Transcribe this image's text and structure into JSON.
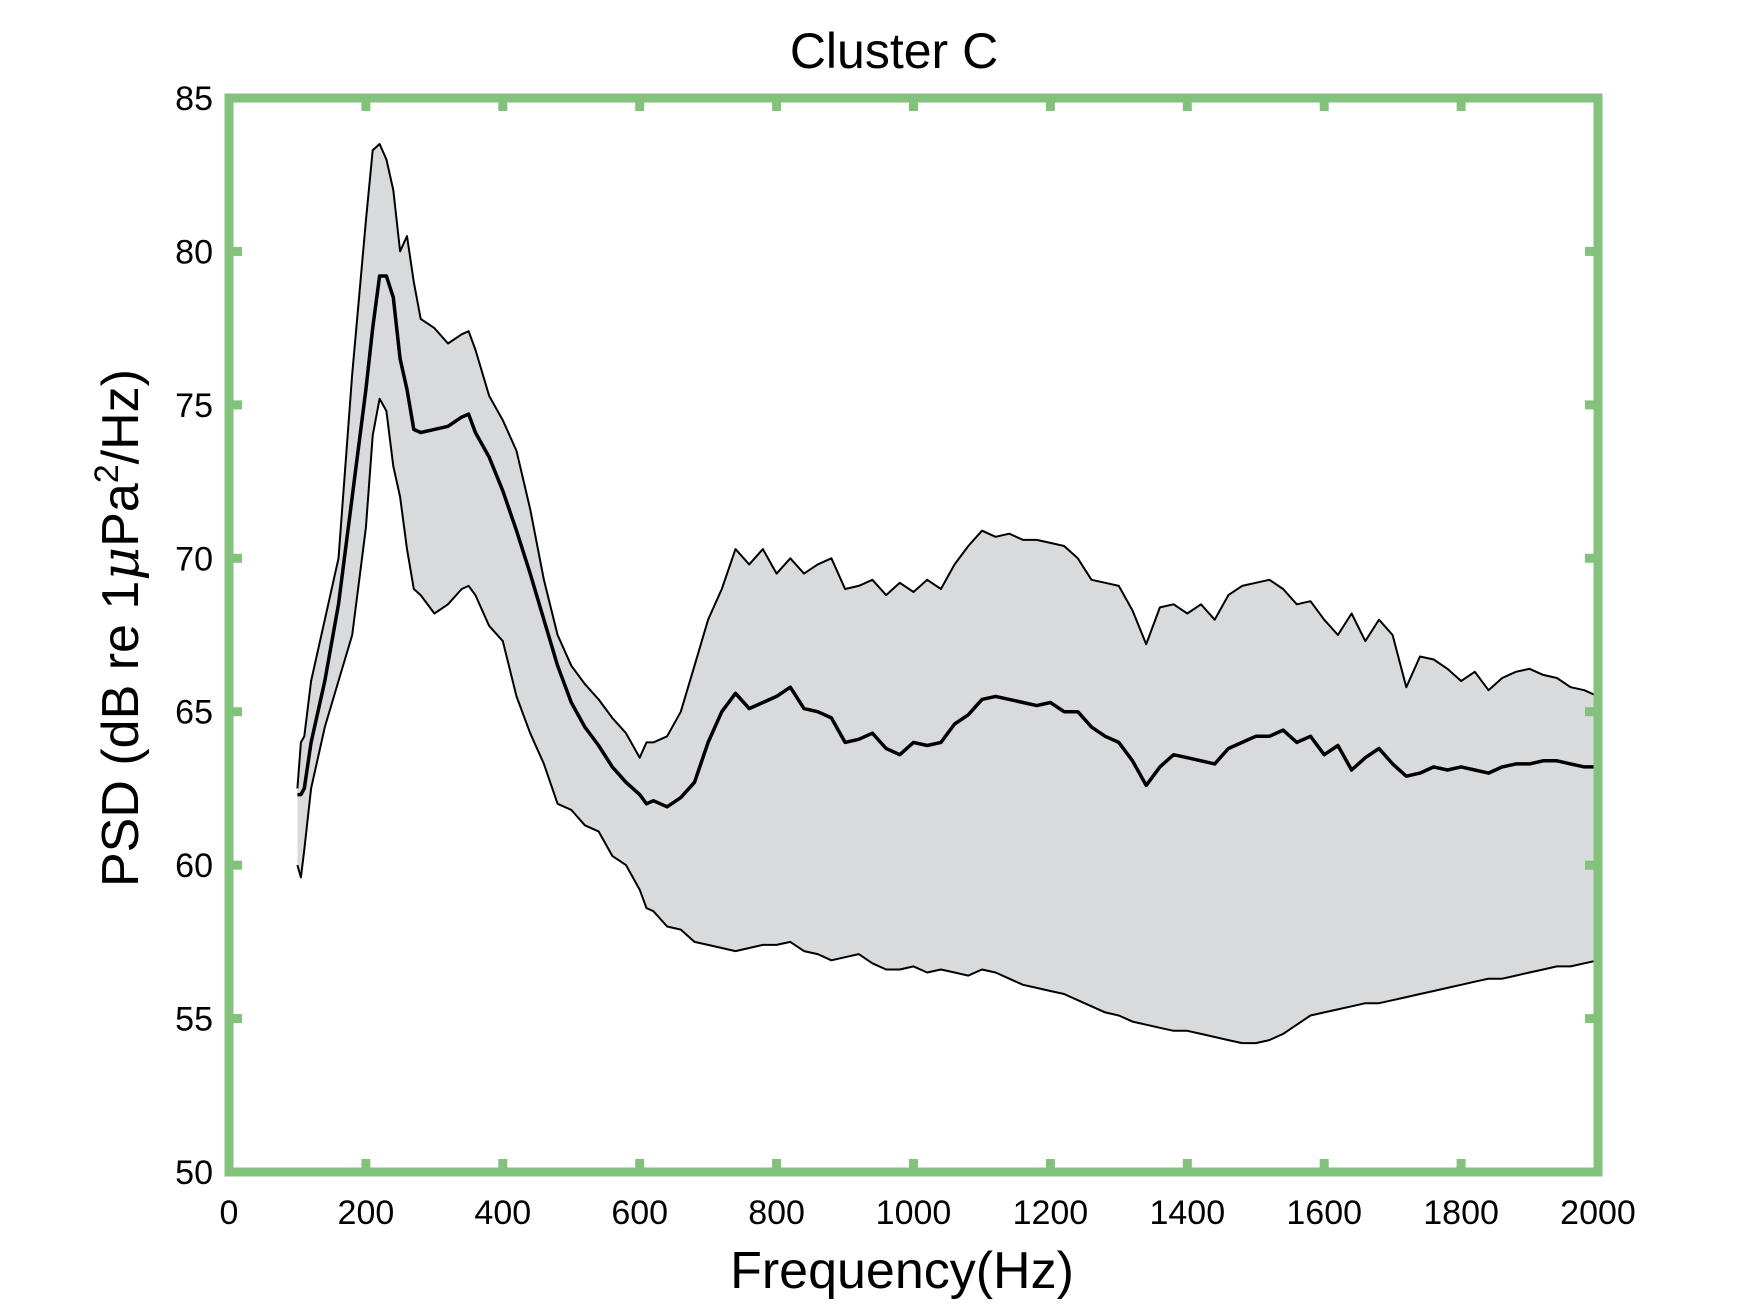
{
  "chart_data": {
    "type": "area",
    "title": "Cluster C",
    "xlabel": "Frequency(Hz)",
    "ylabel": {
      "prefix": "PSD (dB re 1",
      "mu": "μ",
      "middle": "Pa",
      "sup": "2",
      "suffix": "/Hz)"
    },
    "xlim": [
      0,
      2000
    ],
    "ylim": [
      50,
      85
    ],
    "xticks": [
      0,
      200,
      400,
      600,
      800,
      1000,
      1200,
      1400,
      1600,
      1800,
      2000
    ],
    "yticks": [
      50,
      55,
      60,
      65,
      70,
      75,
      80,
      85
    ],
    "grid": false,
    "legend": "none",
    "colors": {
      "frame": "#82c27c",
      "band_fill": "#d9dadc",
      "line": "#000000"
    },
    "x": [
      100,
      105,
      110,
      120,
      140,
      160,
      180,
      200,
      210,
      220,
      230,
      240,
      250,
      260,
      270,
      280,
      300,
      320,
      340,
      350,
      360,
      380,
      400,
      420,
      440,
      460,
      480,
      500,
      520,
      540,
      560,
      580,
      600,
      610,
      620,
      640,
      660,
      680,
      700,
      720,
      740,
      760,
      780,
      800,
      820,
      840,
      860,
      880,
      900,
      920,
      940,
      960,
      980,
      1000,
      1020,
      1040,
      1060,
      1080,
      1100,
      1120,
      1140,
      1160,
      1180,
      1200,
      1220,
      1240,
      1260,
      1280,
      1300,
      1320,
      1340,
      1360,
      1380,
      1400,
      1420,
      1440,
      1460,
      1480,
      1500,
      1520,
      1540,
      1560,
      1580,
      1600,
      1620,
      1640,
      1660,
      1680,
      1700,
      1720,
      1740,
      1760,
      1780,
      1800,
      1820,
      1840,
      1860,
      1880,
      1900,
      1920,
      1940,
      1960,
      1980,
      2000
    ],
    "series": [
      {
        "role": "upper",
        "values": [
          62.5,
          64.0,
          64.2,
          66.0,
          68.0,
          70.0,
          76.0,
          81.0,
          83.3,
          83.5,
          83.0,
          82.0,
          80.0,
          80.5,
          79.0,
          77.8,
          77.5,
          77.0,
          77.3,
          77.4,
          76.8,
          75.3,
          74.5,
          73.5,
          71.6,
          69.3,
          67.5,
          66.5,
          65.9,
          65.4,
          64.8,
          64.3,
          63.5,
          64.0,
          64.0,
          64.2,
          65.0,
          66.5,
          68.0,
          69.0,
          70.3,
          69.8,
          70.3,
          69.5,
          70.0,
          69.5,
          69.8,
          70.0,
          69.0,
          69.1,
          69.3,
          68.8,
          69.2,
          68.9,
          69.3,
          69.0,
          69.8,
          70.4,
          70.9,
          70.7,
          70.8,
          70.6,
          70.6,
          70.5,
          70.4,
          70.0,
          69.3,
          69.2,
          69.1,
          68.3,
          67.2,
          68.4,
          68.5,
          68.2,
          68.5,
          68.0,
          68.8,
          69.1,
          69.2,
          69.3,
          69.0,
          68.5,
          68.6,
          68.0,
          67.5,
          68.2,
          67.3,
          68.0,
          67.5,
          65.8,
          66.8,
          66.7,
          66.4,
          66.0,
          66.3,
          65.7,
          66.1,
          66.3,
          66.4,
          66.2,
          66.1,
          65.8,
          65.7,
          65.5
        ],
        "name": ""
      },
      {
        "role": "median",
        "values": [
          62.3,
          62.3,
          62.5,
          64.0,
          66.0,
          68.5,
          72.0,
          75.5,
          77.5,
          79.2,
          79.2,
          78.5,
          76.5,
          75.5,
          74.2,
          74.1,
          74.2,
          74.3,
          74.6,
          74.7,
          74.1,
          73.3,
          72.2,
          70.9,
          69.5,
          68.0,
          66.5,
          65.3,
          64.5,
          63.9,
          63.2,
          62.7,
          62.3,
          62.0,
          62.1,
          61.9,
          62.2,
          62.7,
          64.0,
          65.0,
          65.6,
          65.1,
          65.3,
          65.5,
          65.8,
          65.1,
          65.0,
          64.8,
          64.0,
          64.1,
          64.3,
          63.8,
          63.6,
          64.0,
          63.9,
          64.0,
          64.6,
          64.9,
          65.4,
          65.5,
          65.4,
          65.3,
          65.2,
          65.3,
          65.0,
          65.0,
          64.5,
          64.2,
          64.0,
          63.4,
          62.6,
          63.2,
          63.6,
          63.5,
          63.4,
          63.3,
          63.8,
          64.0,
          64.2,
          64.2,
          64.4,
          64.0,
          64.2,
          63.6,
          63.9,
          63.1,
          63.5,
          63.8,
          63.3,
          62.9,
          63.0,
          63.2,
          63.1,
          63.2,
          63.1,
          63.0,
          63.2,
          63.3,
          63.3,
          63.4,
          63.4,
          63.3,
          63.2,
          63.2
        ],
        "name": ""
      },
      {
        "role": "lower",
        "values": [
          60.0,
          59.6,
          60.5,
          62.5,
          64.5,
          66.0,
          67.5,
          71.0,
          74.0,
          75.2,
          74.8,
          73.0,
          72.0,
          70.3,
          69.0,
          68.8,
          68.2,
          68.5,
          69.0,
          69.1,
          68.8,
          67.8,
          67.3,
          65.5,
          64.3,
          63.3,
          62.0,
          61.8,
          61.3,
          61.1,
          60.3,
          60.0,
          59.2,
          58.6,
          58.5,
          58.0,
          57.9,
          57.5,
          57.4,
          57.3,
          57.2,
          57.3,
          57.4,
          57.4,
          57.5,
          57.2,
          57.1,
          56.9,
          57.0,
          57.1,
          56.8,
          56.6,
          56.6,
          56.7,
          56.5,
          56.6,
          56.5,
          56.4,
          56.6,
          56.5,
          56.3,
          56.1,
          56.0,
          55.9,
          55.8,
          55.6,
          55.4,
          55.2,
          55.1,
          54.9,
          54.8,
          54.7,
          54.6,
          54.6,
          54.5,
          54.4,
          54.3,
          54.2,
          54.2,
          54.3,
          54.5,
          54.8,
          55.1,
          55.2,
          55.3,
          55.4,
          55.5,
          55.5,
          55.6,
          55.7,
          55.8,
          55.9,
          56.0,
          56.1,
          56.2,
          56.3,
          56.3,
          56.4,
          56.5,
          56.6,
          56.7,
          56.7,
          56.8,
          56.9
        ],
        "name": ""
      }
    ]
  }
}
